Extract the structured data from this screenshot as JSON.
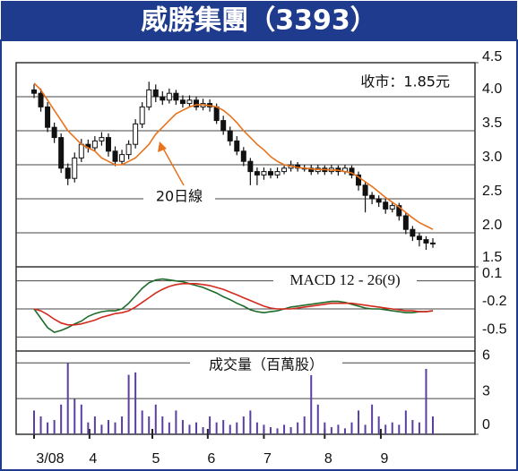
{
  "chart_data": [
    {
      "type": "candlestick",
      "title": "威勝集團（3393）",
      "annotations": [
        "收市：1.85元"
      ],
      "xlim": [
        0,
        59
      ],
      "ylim": [
        1.5,
        4.5
      ],
      "yticks": [
        4.5,
        {
          "value": 4.0,
          "label": "4.0"
        },
        3.5,
        {
          "value": 3.0,
          "label": "3.0"
        },
        2.5,
        {
          "value": 2.0,
          "label": "2.0"
        },
        1.5
      ],
      "color": "#111111",
      "open": [
        4.1,
        4.05,
        3.85,
        3.55,
        3.4,
        2.95,
        2.8,
        3.1,
        3.3,
        3.25,
        3.35,
        3.4,
        3.2,
        3.05,
        3.15,
        3.3,
        3.6,
        3.85,
        4.1,
        4.0,
        3.95,
        4.05,
        3.95,
        3.9,
        3.95,
        3.85,
        3.9,
        3.85,
        3.65,
        3.5,
        3.35,
        3.2,
        3.05,
        2.9,
        2.85,
        2.9,
        2.85,
        2.9,
        2.95,
        3.0,
        2.95,
        2.95,
        2.9,
        2.95,
        2.9,
        2.95,
        2.9,
        2.95,
        2.85,
        2.7,
        2.55,
        2.5,
        2.45,
        2.35,
        2.4,
        2.25,
        2.05,
        1.95,
        1.9,
        1.85
      ],
      "high": [
        4.18,
        4.12,
        3.92,
        3.62,
        3.46,
        3.02,
        3.18,
        3.38,
        3.37,
        3.42,
        3.48,
        3.46,
        3.27,
        3.22,
        3.36,
        3.67,
        3.92,
        4.22,
        4.18,
        4.08,
        4.12,
        4.1,
        4.02,
        4.02,
        4.0,
        3.97,
        3.96,
        3.9,
        3.72,
        3.56,
        3.42,
        3.26,
        3.1,
        2.96,
        2.96,
        2.95,
        2.96,
        3.0,
        3.06,
        3.04,
        3.0,
        3.0,
        3.0,
        2.99,
        3.0,
        2.99,
        3.0,
        2.99,
        2.9,
        2.75,
        2.6,
        2.55,
        2.5,
        2.45,
        2.44,
        2.3,
        2.1,
        2.0,
        1.95,
        1.92
      ],
      "low": [
        3.98,
        3.78,
        3.48,
        3.32,
        2.88,
        2.7,
        2.74,
        3.04,
        3.18,
        3.2,
        3.28,
        3.12,
        2.98,
        3.0,
        3.08,
        3.24,
        3.54,
        3.8,
        3.92,
        3.88,
        3.9,
        3.88,
        3.84,
        3.85,
        3.8,
        3.8,
        3.78,
        3.6,
        3.44,
        3.28,
        3.14,
        2.98,
        2.7,
        2.7,
        2.78,
        2.8,
        2.8,
        2.86,
        2.9,
        2.9,
        2.9,
        2.85,
        2.86,
        2.85,
        2.86,
        2.84,
        2.86,
        2.8,
        2.62,
        2.3,
        2.42,
        2.38,
        2.28,
        2.3,
        2.18,
        1.98,
        1.88,
        1.8,
        1.75,
        1.78
      ],
      "close": [
        4.05,
        3.85,
        3.55,
        3.4,
        2.95,
        2.8,
        3.1,
        3.3,
        3.25,
        3.35,
        3.4,
        3.2,
        3.05,
        3.15,
        3.3,
        3.6,
        3.85,
        4.1,
        4.0,
        3.95,
        4.05,
        3.95,
        3.9,
        3.95,
        3.85,
        3.9,
        3.85,
        3.65,
        3.5,
        3.35,
        3.2,
        3.05,
        2.9,
        2.85,
        2.9,
        2.85,
        2.9,
        2.95,
        3.0,
        2.95,
        2.95,
        2.9,
        2.95,
        2.9,
        2.95,
        2.9,
        2.95,
        2.85,
        2.7,
        2.55,
        2.5,
        2.45,
        2.35,
        2.4,
        2.25,
        2.05,
        1.95,
        1.9,
        1.85,
        1.85
      ],
      "series": [
        {
          "name": "20日線",
          "color": "#e8731c",
          "values": [
            4.2,
            4.1,
            3.95,
            3.8,
            3.65,
            3.5,
            3.4,
            3.3,
            3.25,
            3.2,
            3.1,
            3.05,
            3.0,
            3.0,
            3.05,
            3.1,
            3.2,
            3.3,
            3.45,
            3.55,
            3.65,
            3.75,
            3.8,
            3.85,
            3.88,
            3.88,
            3.87,
            3.85,
            3.8,
            3.72,
            3.62,
            3.5,
            3.4,
            3.3,
            3.22,
            3.12,
            3.05,
            3.0,
            2.98,
            2.96,
            2.95,
            2.94,
            2.93,
            2.93,
            2.92,
            2.92,
            2.9,
            2.88,
            2.82,
            2.75,
            2.68,
            2.6,
            2.52,
            2.45,
            2.38,
            2.3,
            2.22,
            2.15,
            2.1,
            2.05
          ]
        }
      ]
    },
    {
      "type": "line",
      "title": "MACD 12 - 26(9)",
      "xlim": [
        0,
        59
      ],
      "ylim": [
        -0.65,
        0.25
      ],
      "yticks": [
        0.1,
        -0.2,
        -0.5
      ],
      "series": [
        {
          "color": "#1e6b2a",
          "values": [
            -0.2,
            -0.3,
            -0.4,
            -0.45,
            -0.43,
            -0.4,
            -0.36,
            -0.33,
            -0.28,
            -0.25,
            -0.23,
            -0.22,
            -0.22,
            -0.2,
            -0.14,
            -0.06,
            0.02,
            0.08,
            0.11,
            0.12,
            0.11,
            0.1,
            0.09,
            0.07,
            0.05,
            0.03,
            0.0,
            -0.03,
            -0.07,
            -0.1,
            -0.14,
            -0.17,
            -0.21,
            -0.23,
            -0.24,
            -0.23,
            -0.22,
            -0.2,
            -0.18,
            -0.17,
            -0.16,
            -0.15,
            -0.14,
            -0.13,
            -0.12,
            -0.12,
            -0.13,
            -0.15,
            -0.17,
            -0.19,
            -0.2,
            -0.2,
            -0.21,
            -0.22,
            -0.23,
            -0.24,
            -0.24,
            -0.23,
            -0.23,
            -0.22
          ]
        },
        {
          "color": "#d42a1e",
          "values": [
            -0.2,
            -0.22,
            -0.26,
            -0.31,
            -0.35,
            -0.37,
            -0.37,
            -0.36,
            -0.34,
            -0.32,
            -0.29,
            -0.27,
            -0.25,
            -0.24,
            -0.22,
            -0.18,
            -0.13,
            -0.08,
            -0.03,
            0.01,
            0.04,
            0.06,
            0.07,
            0.07,
            0.07,
            0.06,
            0.05,
            0.03,
            0.01,
            -0.02,
            -0.05,
            -0.08,
            -0.11,
            -0.14,
            -0.17,
            -0.19,
            -0.2,
            -0.2,
            -0.2,
            -0.19,
            -0.18,
            -0.17,
            -0.16,
            -0.15,
            -0.14,
            -0.14,
            -0.14,
            -0.14,
            -0.15,
            -0.16,
            -0.17,
            -0.18,
            -0.19,
            -0.2,
            -0.21,
            -0.22,
            -0.22,
            -0.23,
            -0.23,
            -0.22
          ]
        }
      ]
    },
    {
      "type": "bar",
      "title": "成交量（百萬股）",
      "xlim": [
        0,
        59
      ],
      "ylim": [
        0,
        7
      ],
      "yticks": [
        6,
        3,
        0
      ],
      "color": "#5b3fa0",
      "xticks": [
        {
          "value": 0,
          "label": "3/08"
        },
        {
          "value": 8.2,
          "label": "4"
        },
        {
          "value": 17.5,
          "label": "5"
        },
        {
          "value": 25.7,
          "label": "6"
        },
        {
          "value": 34,
          "label": "7"
        },
        {
          "value": 43,
          "label": "8"
        },
        {
          "value": 51.3,
          "label": "9"
        }
      ],
      "values": [
        2,
        1.5,
        1,
        1.2,
        2.5,
        6,
        3,
        2.5,
        1,
        1.5,
        0.8,
        1.2,
        1,
        1.5,
        5,
        5.2,
        2,
        1.5,
        2.5,
        1.5,
        1,
        2,
        1.2,
        0.8,
        1,
        0.6,
        1.5,
        1,
        1.2,
        0.8,
        1,
        1.5,
        2,
        1,
        0.8,
        0.6,
        0.5,
        0.8,
        0.6,
        1,
        1.5,
        5.2,
        2.5,
        1,
        0.6,
        0.8,
        0.5,
        1,
        2,
        0.8,
        2.5,
        1.5,
        0.8,
        1,
        0.8,
        2,
        1.2,
        1,
        5.5,
        1.5
      ]
    }
  ]
}
